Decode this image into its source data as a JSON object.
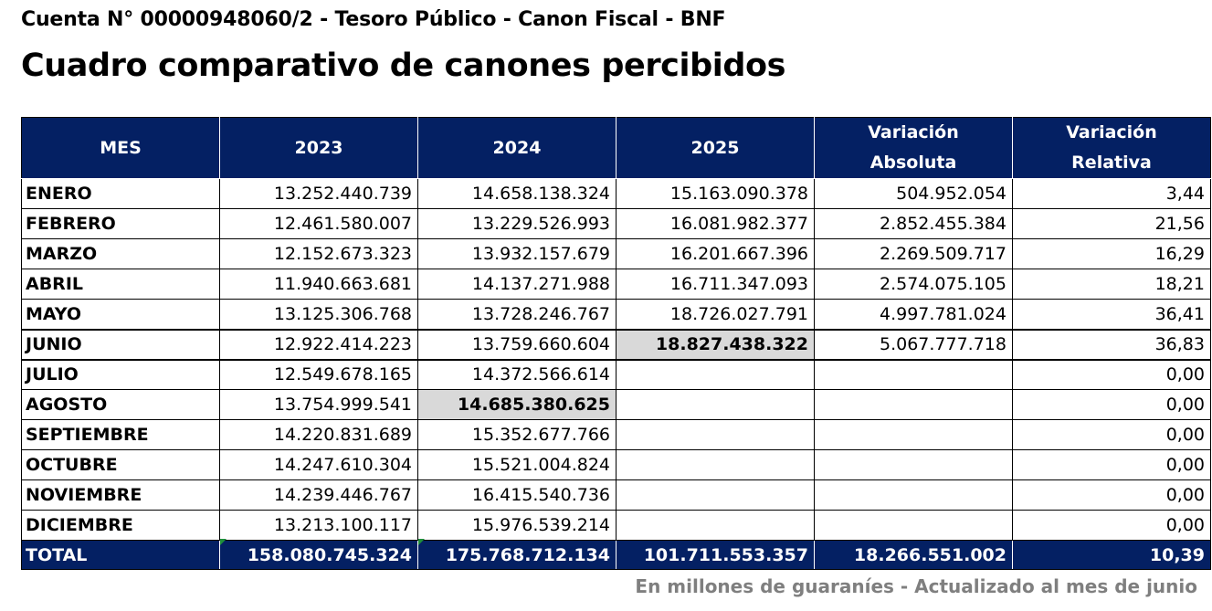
{
  "header": {
    "subtitle": "Cuenta N° 00000948060/2 - Tesoro Público - Canon Fiscal - BNF",
    "title": "Cuadro comparativo de canones percibidos"
  },
  "table": {
    "columns": {
      "mes": "MES",
      "y2023": "2023",
      "y2024": "2024",
      "y2025": "2025",
      "var_abs_1": "Variación",
      "var_abs_2": "Absoluta",
      "var_rel_1": "Variación",
      "var_rel_2": "Relativa"
    },
    "rows": [
      {
        "mes": "ENERO",
        "y2023": "13.252.440.739",
        "y2024": "14.658.138.324",
        "y2025": "15.163.090.378",
        "var_abs": "504.952.054",
        "var_rel": "3,44"
      },
      {
        "mes": "FEBRERO",
        "y2023": "12.461.580.007",
        "y2024": "13.229.526.993",
        "y2025": "16.081.982.377",
        "var_abs": "2.852.455.384",
        "var_rel": "21,56"
      },
      {
        "mes": "MARZO",
        "y2023": "12.152.673.323",
        "y2024": "13.932.157.679",
        "y2025": "16.201.667.396",
        "var_abs": "2.269.509.717",
        "var_rel": "16,29"
      },
      {
        "mes": "ABRIL",
        "y2023": "11.940.663.681",
        "y2024": "14.137.271.988",
        "y2025": "16.711.347.093",
        "var_abs": "2.574.075.105",
        "var_rel": "18,21"
      },
      {
        "mes": "MAYO",
        "y2023": "13.125.306.768",
        "y2024": "13.728.246.767",
        "y2025": "18.726.027.791",
        "var_abs": "4.997.781.024",
        "var_rel": "36,41"
      },
      {
        "mes": "JUNIO",
        "y2023": "12.922.414.223",
        "y2024": "13.759.660.604",
        "y2025": "18.827.438.322",
        "var_abs": "5.067.777.718",
        "var_rel": "36,83"
      },
      {
        "mes": "JULIO",
        "y2023": "12.549.678.165",
        "y2024": "14.372.566.614",
        "y2025": "",
        "var_abs": "",
        "var_rel": "0,00"
      },
      {
        "mes": "AGOSTO",
        "y2023": "13.754.999.541",
        "y2024": "14.685.380.625",
        "y2025": "",
        "var_abs": "",
        "var_rel": "0,00"
      },
      {
        "mes": "SEPTIEMBRE",
        "y2023": "14.220.831.689",
        "y2024": "15.352.677.766",
        "y2025": "",
        "var_abs": "",
        "var_rel": "0,00"
      },
      {
        "mes": "OCTUBRE",
        "y2023": "14.247.610.304",
        "y2024": "15.521.004.824",
        "y2025": "",
        "var_abs": "",
        "var_rel": "0,00"
      },
      {
        "mes": "NOVIEMBRE",
        "y2023": "14.239.446.767",
        "y2024": "16.415.540.736",
        "y2025": "",
        "var_abs": "",
        "var_rel": "0,00"
      },
      {
        "mes": "DICIEMBRE",
        "y2023": "13.213.100.117",
        "y2024": "15.976.539.214",
        "y2025": "",
        "var_abs": "",
        "var_rel": "0,00"
      }
    ],
    "total": {
      "mes": "TOTAL",
      "y2023": "158.080.745.324",
      "y2024": "175.768.712.134",
      "y2025": "101.711.553.357",
      "var_abs": "18.266.551.002",
      "var_rel": "10,39"
    },
    "highlight_color": "#d9d9d9",
    "header_color": "#042063"
  },
  "footnote": "En millones de guaraníes - Actualizado al mes de junio"
}
